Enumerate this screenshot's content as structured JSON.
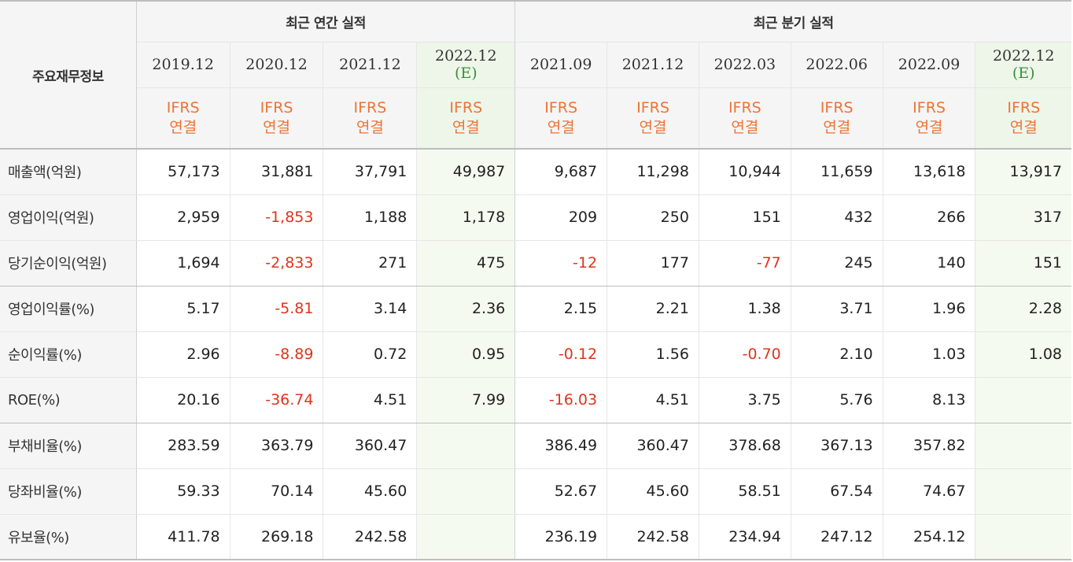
{
  "header": {
    "corner_label": "주요재무정보",
    "annual_group": "최근 연간 실적",
    "quarter_group": "최근 분기 실적",
    "estimate_mark": "(E)",
    "std_line1": "IFRS",
    "std_line2": "연결",
    "annual_periods": [
      "2019.12",
      "2020.12",
      "2021.12",
      "2022.12"
    ],
    "quarter_periods": [
      "2021.09",
      "2021.12",
      "2022.03",
      "2022.06",
      "2022.09",
      "2022.12"
    ]
  },
  "rows": [
    {
      "label": "매출액(억원)",
      "values": [
        "57,173",
        "31,881",
        "37,791",
        "49,987",
        "9,687",
        "11,298",
        "10,944",
        "11,659",
        "13,618",
        "13,917"
      ]
    },
    {
      "label": "영업이익(억원)",
      "values": [
        "2,959",
        "-1,853",
        "1,188",
        "1,178",
        "209",
        "250",
        "151",
        "432",
        "266",
        "317"
      ]
    },
    {
      "label": "당기순이익(억원)",
      "values": [
        "1,694",
        "-2,833",
        "271",
        "475",
        "-12",
        "177",
        "-77",
        "245",
        "140",
        "151"
      ]
    },
    {
      "label": "영업이익률(%)",
      "values": [
        "5.17",
        "-5.81",
        "3.14",
        "2.36",
        "2.15",
        "2.21",
        "1.38",
        "3.71",
        "1.96",
        "2.28"
      ]
    },
    {
      "label": "순이익률(%)",
      "values": [
        "2.96",
        "-8.89",
        "0.72",
        "0.95",
        "-0.12",
        "1.56",
        "-0.70",
        "2.10",
        "1.03",
        "1.08"
      ]
    },
    {
      "label": "ROE(%)",
      "values": [
        "20.16",
        "-36.74",
        "4.51",
        "7.99",
        "-16.03",
        "4.51",
        "3.75",
        "5.76",
        "8.13",
        ""
      ]
    },
    {
      "label": "부채비율(%)",
      "values": [
        "283.59",
        "363.79",
        "360.47",
        "",
        "386.49",
        "360.47",
        "378.68",
        "367.13",
        "357.82",
        ""
      ]
    },
    {
      "label": "당좌비율(%)",
      "values": [
        "59.33",
        "70.14",
        "45.60",
        "",
        "52.67",
        "45.60",
        "58.51",
        "67.54",
        "74.67",
        ""
      ]
    },
    {
      "label": "유보율(%)",
      "values": [
        "411.78",
        "269.18",
        "242.58",
        "",
        "236.19",
        "242.58",
        "234.94",
        "247.12",
        "254.12",
        ""
      ]
    }
  ],
  "colors": {
    "negative": "#e0341d",
    "accounting_standard": "#ed7435",
    "estimate_text": "#3c8f3c",
    "estimate_bg": "#f4faf0",
    "header_bg": "#f5f5f5"
  }
}
